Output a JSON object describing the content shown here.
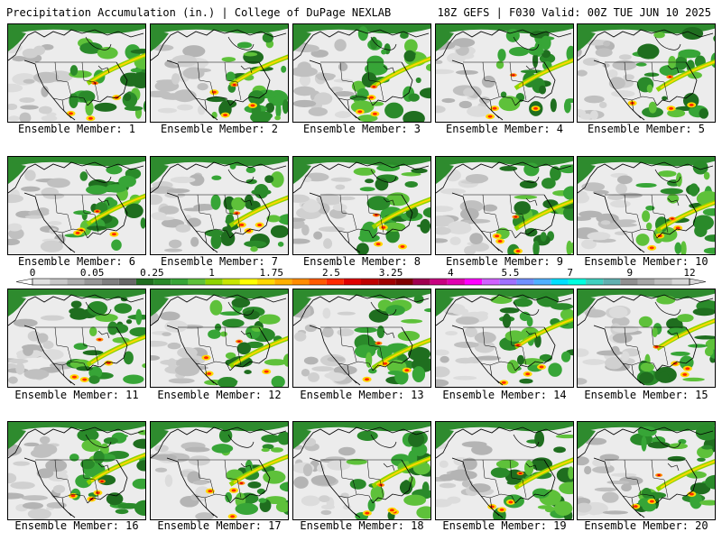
{
  "header": {
    "title": "Precipitation Accumulation (in.) | College of DuPage NEXLAB",
    "run_info": "18Z GEFS | F030 Valid: 00Z TUE JUN 10 2025"
  },
  "members": [
    {
      "label": "Ensemble Member: 1"
    },
    {
      "label": "Ensemble Member: 2"
    },
    {
      "label": "Ensemble Member: 3"
    },
    {
      "label": "Ensemble Member: 4"
    },
    {
      "label": "Ensemble Member: 5"
    },
    {
      "label": "Ensemble Member: 6"
    },
    {
      "label": "Ensemble Member: 7"
    },
    {
      "label": "Ensemble Member: 8"
    },
    {
      "label": "Ensemble Member: 9"
    },
    {
      "label": "Ensemble Member: 10"
    },
    {
      "label": "Ensemble Member: 11"
    },
    {
      "label": "Ensemble Member: 12"
    },
    {
      "label": "Ensemble Member: 13"
    },
    {
      "label": "Ensemble Member: 14"
    },
    {
      "label": "Ensemble Member: 15"
    },
    {
      "label": "Ensemble Member: 16"
    },
    {
      "label": "Ensemble Member: 17"
    },
    {
      "label": "Ensemble Member: 18"
    },
    {
      "label": "Ensemble Member: 19"
    },
    {
      "label": "Ensemble Member: 20"
    }
  ],
  "colorbar": {
    "labels": [
      "0",
      "0.05",
      "0.25",
      "1",
      "1.75",
      "2.5",
      "3.25",
      "4",
      "5.5",
      "7",
      "9",
      "12"
    ],
    "colors": [
      "#e0e0e0",
      "#c8c8c8",
      "#b0b0b0",
      "#989898",
      "#808080",
      "#686868",
      "#1f6e1f",
      "#2a8a2a",
      "#37a537",
      "#5ec13a",
      "#8fd400",
      "#c8e600",
      "#ffff00",
      "#ffd800",
      "#ffb000",
      "#ff8c00",
      "#ff5a00",
      "#ff2a00",
      "#e00000",
      "#c00000",
      "#a00000",
      "#800000",
      "#a00050",
      "#c80080",
      "#e000b0",
      "#ff00ff",
      "#d060ff",
      "#a070ff",
      "#7090ff",
      "#50b0ff",
      "#00e0ff",
      "#00ffe0",
      "#40d0c0",
      "#60b0b0",
      "#909090",
      "#a8a8a8",
      "#c0c0c0",
      "#d8d8d8"
    ]
  }
}
